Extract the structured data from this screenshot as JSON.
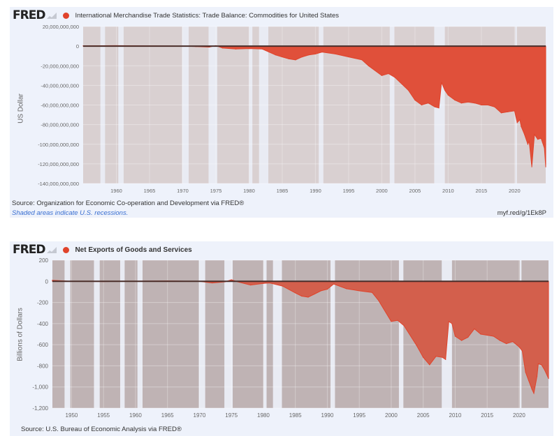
{
  "colors": {
    "series": "#e0432b",
    "zero_line": "#4a2e2a",
    "recession": "#e9ebf3",
    "panel_bg": "#eef2fb",
    "link": "#3a6fd1"
  },
  "recessions": [
    [
      1948.9,
      1949.8
    ],
    [
      1953.5,
      1954.4
    ],
    [
      1957.6,
      1958.3
    ],
    [
      1960.3,
      1961.1
    ],
    [
      1969.9,
      1970.9
    ],
    [
      1973.9,
      1975.2
    ],
    [
      1980.0,
      1980.5
    ],
    [
      1981.5,
      1982.9
    ],
    [
      1990.5,
      1991.2
    ],
    [
      2001.2,
      2001.9
    ],
    [
      2007.9,
      2009.5
    ],
    [
      2020.1,
      2020.3
    ]
  ],
  "charts": [
    {
      "logo": "FRED",
      "title": "International Merchandise Trade Statistics: Trade Balance: Commodities for United States",
      "ylabel": "US Dollar",
      "source": "Source: Organization for Economic Co-operation and Development via FRED®",
      "recession_note": "Shaded areas indicate U.S. recessions.",
      "short_url": "myf.red/g/1Ek8P"
    },
    {
      "logo": "FRED",
      "title": "Net Exports of Goods and Services",
      "ylabel": "Billions of Dollars",
      "source": "Source: U.S. Bureau of Economic Analysis via FRED®"
    }
  ],
  "chart_data": [
    {
      "type": "area",
      "title": "International Merchandise Trade Statistics: Trade Balance: Commodities for United States",
      "xlabel": "",
      "ylabel": "US Dollar",
      "xlim": [
        1955,
        2024.7
      ],
      "ylim": [
        -140000000000,
        20000000000
      ],
      "grid": true,
      "legend": "top-left",
      "x_ticks": [
        1960,
        1965,
        1970,
        1975,
        1980,
        1985,
        1990,
        1995,
        2000,
        2005,
        2010,
        2015,
        2020
      ],
      "y_ticks": [
        20000000000,
        0,
        -20000000000,
        -40000000000,
        -60000000000,
        -80000000000,
        -100000000000,
        -120000000000,
        -140000000000
      ],
      "y_tick_labels": [
        "20,000,000,000",
        "0",
        "-20,000,000,000",
        "-40,000,000,000",
        "-60,000,000,000",
        "-80,000,000,000",
        "-100,000,000,000",
        "-120,000,000,000",
        "-140,000,000,000"
      ],
      "series": [
        {
          "name": "Trade Balance: Commodities",
          "x": [
            1955,
            1960,
            1965,
            1970,
            1972,
            1974,
            1975,
            1976,
            1978,
            1980,
            1982,
            1983,
            1984,
            1985,
            1986,
            1987,
            1988,
            1989,
            1990,
            1991,
            1993,
            1995,
            1997,
            1998,
            2000,
            2001,
            2002,
            2004,
            2005,
            2006,
            2007,
            2008,
            2008.6,
            2009,
            2009.5,
            2010,
            2011,
            2012,
            2013,
            2014,
            2015,
            2016,
            2017,
            2018,
            2019,
            2020,
            2020.4,
            2020.8,
            2021,
            2021.5,
            2022,
            2022.2,
            2022.6,
            2023,
            2023.5,
            2024,
            2024.5,
            2024.7
          ],
          "values": [
            0.3,
            0.5,
            0.3,
            0.1,
            -0.5,
            -1.0,
            0.5,
            -2,
            -3,
            -2.5,
            -3,
            -6,
            -9,
            -11,
            -13,
            -14,
            -11,
            -9,
            -8,
            -6,
            -8,
            -11,
            -14,
            -20,
            -30,
            -28,
            -32,
            -45,
            -55,
            -60,
            -58,
            -62,
            -63,
            -37,
            -45,
            -50,
            -55,
            -58,
            -57,
            -58,
            -60,
            -60,
            -62,
            -68,
            -67,
            -66,
            -78,
            -75,
            -82,
            -90,
            -100,
            -97,
            -123,
            -90,
            -95,
            -94,
            -104,
            -123
          ],
          "unit_multiplier": 1000000000
        }
      ]
    },
    {
      "type": "area",
      "title": "Net Exports of Goods and Services",
      "xlabel": "",
      "ylabel": "Billions of Dollars",
      "xlim": [
        1947,
        2024.6
      ],
      "ylim": [
        -1200,
        200
      ],
      "grid": true,
      "legend": "top-left",
      "x_ticks": [
        1950,
        1955,
        1960,
        1965,
        1970,
        1975,
        1980,
        1985,
        1990,
        1995,
        2000,
        2005,
        2010,
        2015,
        2020
      ],
      "y_ticks": [
        200,
        0,
        -200,
        -400,
        -600,
        -800,
        -1000,
        -1200
      ],
      "y_tick_labels": [
        "200",
        "0",
        "-200",
        "-400",
        "-600",
        "-800",
        "-1,000",
        "-1,200"
      ],
      "series": [
        {
          "name": "Net Exports of Goods and Services",
          "x": [
            1947,
            1950,
            1955,
            1960,
            1965,
            1970,
            1972,
            1974,
            1975,
            1976,
            1978,
            1980,
            1981,
            1983,
            1985,
            1986,
            1987,
            1988,
            1989,
            1990,
            1991,
            1993,
            1995,
            1997,
            1998,
            2000,
            2001,
            2002,
            2004,
            2005,
            2006,
            2007,
            2008,
            2008.5,
            2009,
            2009.5,
            2010,
            2011,
            2012,
            2013,
            2014,
            2015,
            2016,
            2017,
            2018,
            2019,
            2020,
            2020.5,
            2021,
            2021.5,
            2022,
            2022.3,
            2022.8,
            2023,
            2023.5,
            2024,
            2024.6
          ],
          "values": [
            10,
            0,
            -2,
            2,
            4,
            0,
            -15,
            -5,
            15,
            -5,
            -35,
            -20,
            -15,
            -45,
            -110,
            -140,
            -150,
            -120,
            -90,
            -75,
            -25,
            -70,
            -90,
            -105,
            -180,
            -380,
            -370,
            -420,
            -610,
            -720,
            -790,
            -710,
            -720,
            -740,
            -380,
            -400,
            -520,
            -560,
            -530,
            -450,
            -500,
            -510,
            -520,
            -560,
            -590,
            -570,
            -620,
            -660,
            -860,
            -940,
            -1020,
            -1060,
            -900,
            -780,
            -790,
            -840,
            -920
          ]
        }
      ]
    }
  ]
}
